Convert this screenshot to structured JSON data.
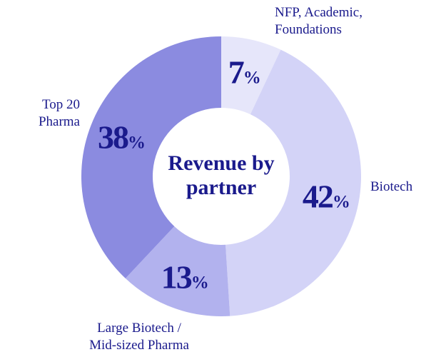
{
  "chart_data": {
    "type": "donut",
    "title": "Revenue by partner",
    "categories": [
      "NFP, Academic,\nFoundations",
      "Biotech",
      "Large Biotech /\nMid-sized Pharma",
      "Top 20\nPharma"
    ],
    "values": [
      7,
      42,
      13,
      38
    ],
    "value_labels": [
      "7%",
      "42%",
      "13%",
      "38%"
    ],
    "colors": [
      "#e6e6fa",
      "#d3d3f7",
      "#b2b2ee",
      "#8b8be0"
    ]
  }
}
